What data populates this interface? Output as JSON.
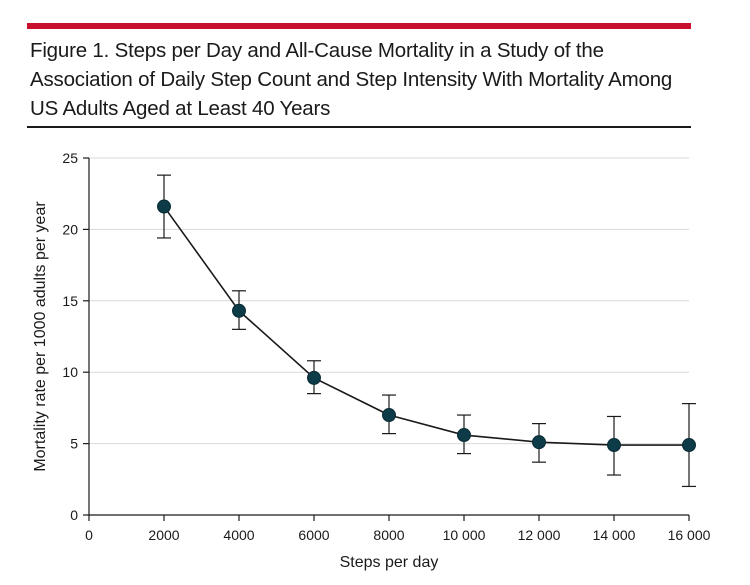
{
  "figure": {
    "title": "Figure 1. Steps per Day and All-Cause Mortality in a Study of the Association of Daily Step Count and Step Intensity With Mortality Among US Adults Aged at Least 40 Years",
    "accent_color": "#c8102e",
    "marker_color": "#0d3b47"
  },
  "chart_data": {
    "type": "line",
    "title": "Figure 1. Steps per Day and All-Cause Mortality in a Study of the Association of Daily Step Count and Step Intensity With Mortality Among US Adults Aged at Least 40 Years",
    "xlabel": "Steps per day",
    "ylabel": "Mortality rate per 1000 adults per year",
    "xlim": [
      0,
      16000
    ],
    "ylim": [
      0,
      25
    ],
    "x_ticks": [
      0,
      2000,
      4000,
      6000,
      8000,
      10000,
      12000,
      14000,
      16000
    ],
    "x_tick_labels": [
      "0",
      "2000",
      "4000",
      "6000",
      "8000",
      "10 000",
      "12 000",
      "14 000",
      "16 000"
    ],
    "y_ticks": [
      0,
      5,
      10,
      15,
      20,
      25
    ],
    "y_tick_labels": [
      "0",
      "5",
      "10",
      "15",
      "20",
      "25"
    ],
    "grid": true,
    "series": [
      {
        "name": "Mortality rate",
        "x": [
          2000,
          4000,
          6000,
          8000,
          10000,
          12000,
          14000,
          16000
        ],
        "values": [
          21.6,
          14.3,
          9.6,
          7.0,
          5.6,
          5.1,
          4.9,
          4.9
        ],
        "ci_lower": [
          19.4,
          13.0,
          8.5,
          5.7,
          4.3,
          3.7,
          2.8,
          2.0
        ],
        "ci_upper": [
          23.8,
          15.7,
          10.8,
          8.4,
          7.0,
          6.4,
          6.9,
          7.8
        ]
      }
    ]
  }
}
